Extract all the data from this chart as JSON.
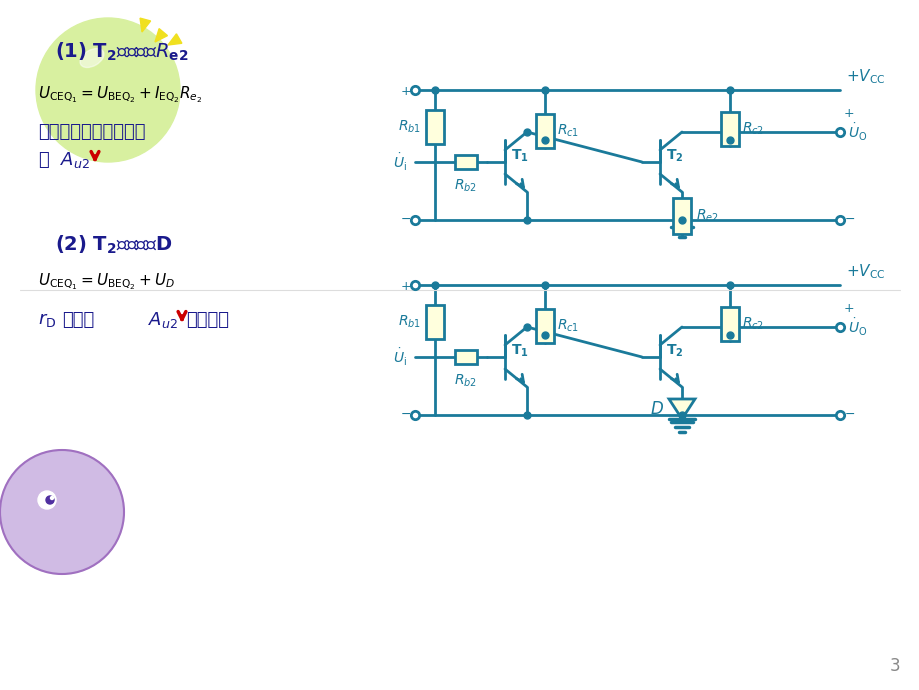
{
  "bg_color": "#ffffff",
  "teal": "#1a7a9a",
  "dark_blue": "#1a1a8c",
  "red": "#cc0000",
  "resistor_fill": "#ffffdd",
  "balloon_green": "#d8f0a0",
  "balloon_purple": "#c8b0e0",
  "page_num": "3",
  "text1": "两级静态工作点合适，",
  "text2": "但",
  "text3": "很小，",
  "text4": "损失小。"
}
